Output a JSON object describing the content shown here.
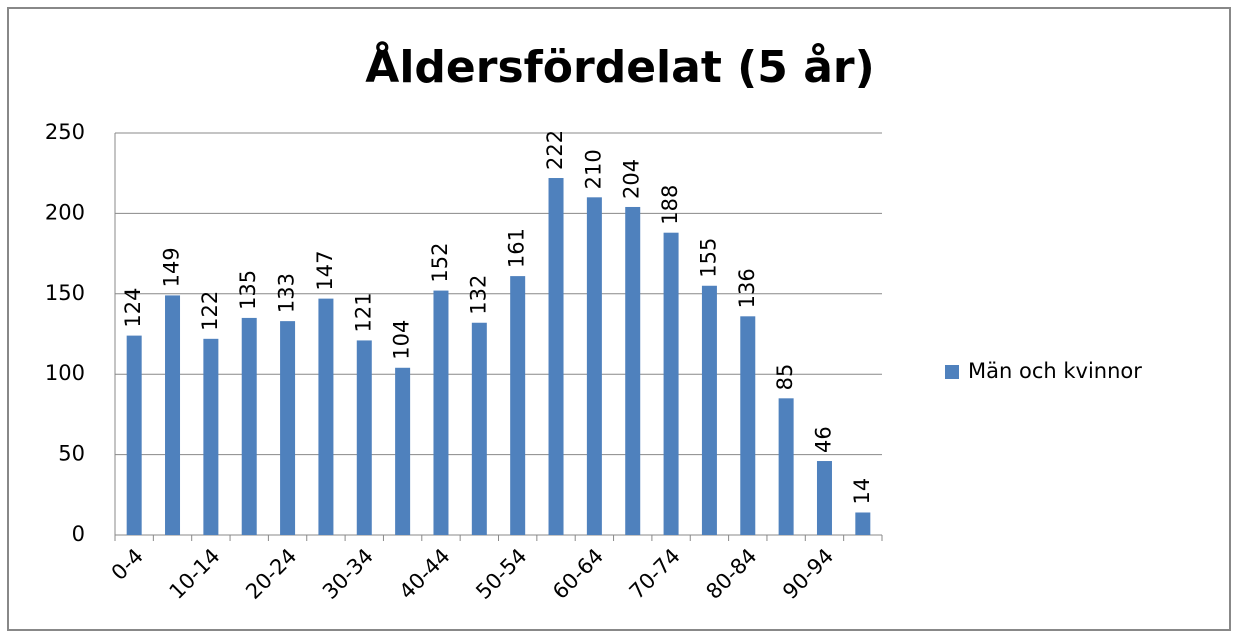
{
  "chart_data": {
    "type": "bar",
    "title": "Åldersfördelat (5 år)",
    "categories": [
      "0-4",
      null,
      "10-14",
      null,
      "20-24",
      null,
      "30-34",
      null,
      "40-44",
      null,
      "50-54",
      null,
      "60-64",
      null,
      "70-74",
      null,
      "80-84",
      null,
      "90-94",
      null
    ],
    "series": [
      {
        "name": "Män och kvinnor",
        "color": "#4f81bd",
        "values": [
          124,
          149,
          122,
          135,
          133,
          147,
          121,
          104,
          152,
          132,
          161,
          222,
          210,
          204,
          188,
          155,
          136,
          85,
          46,
          14
        ]
      }
    ],
    "ylim": [
      0,
      250
    ],
    "yticks": [
      0,
      50,
      100,
      150,
      200,
      250
    ],
    "grid": true,
    "legend": "right"
  }
}
